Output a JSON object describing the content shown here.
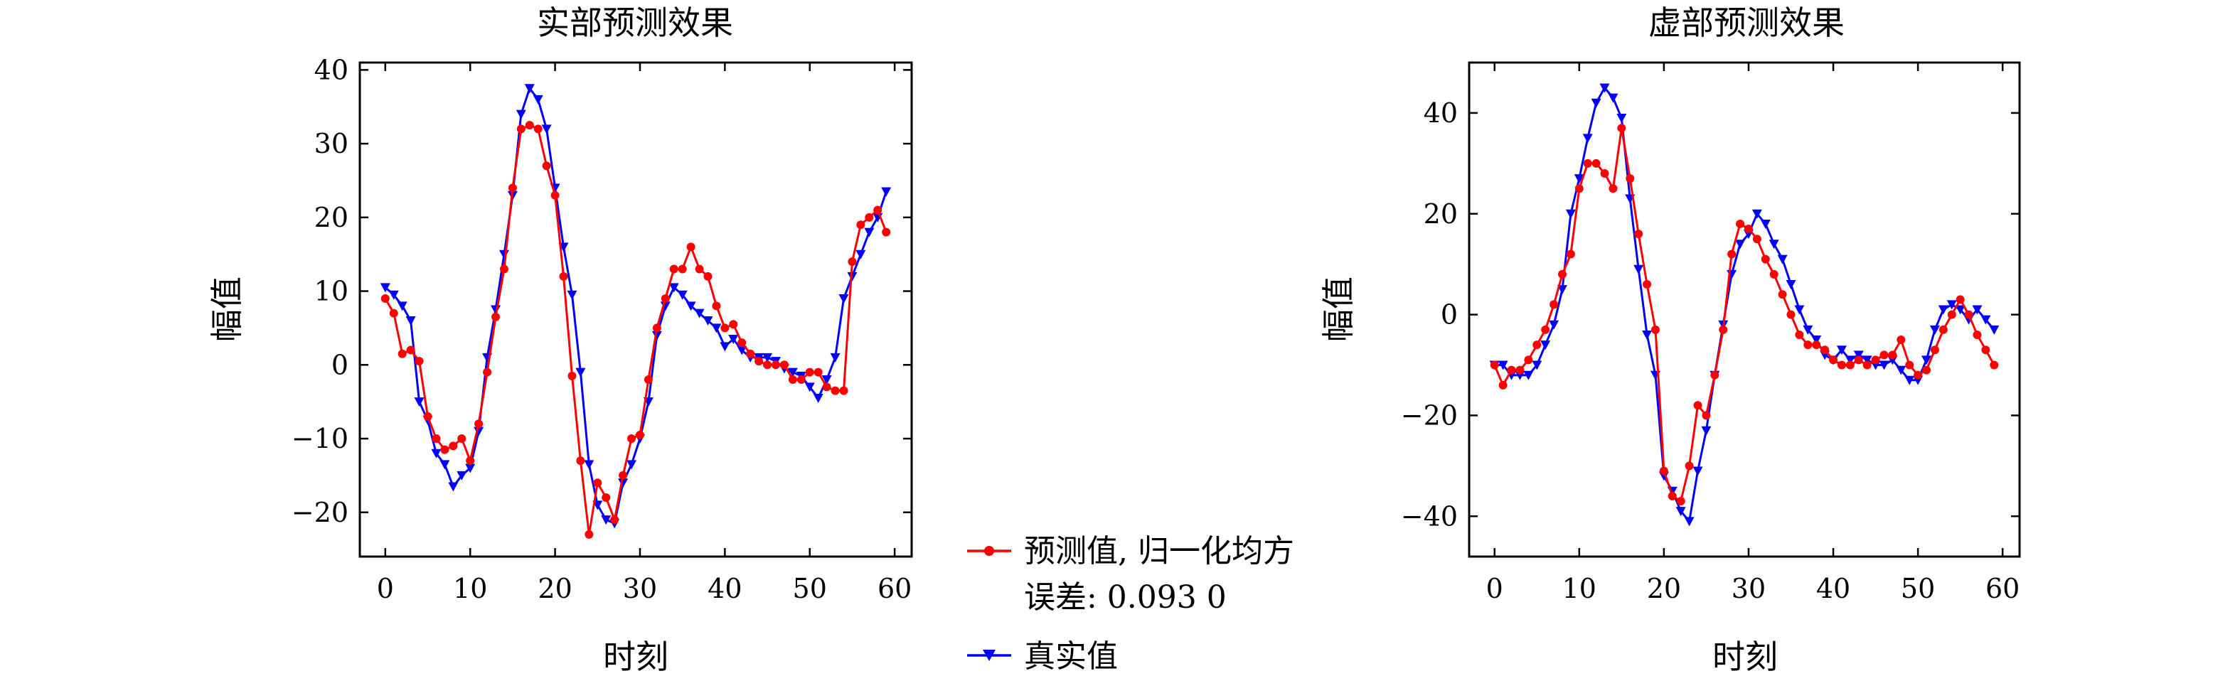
{
  "chart_data": [
    {
      "type": "line",
      "title": "实部预测效果",
      "xlabel": "时刻",
      "ylabel": "幅值",
      "xlim": [
        -3,
        62
      ],
      "ylim": [
        -26,
        41
      ],
      "xticks": [
        0,
        10,
        20,
        30,
        40,
        50,
        60
      ],
      "yticks": [
        -20,
        -10,
        0,
        10,
        20,
        30,
        40
      ],
      "x": [
        0,
        1,
        2,
        3,
        4,
        5,
        6,
        7,
        8,
        9,
        10,
        11,
        12,
        13,
        14,
        15,
        16,
        17,
        18,
        19,
        20,
        21,
        22,
        23,
        24,
        25,
        26,
        27,
        28,
        29,
        30,
        31,
        32,
        33,
        34,
        35,
        36,
        37,
        38,
        39,
        40,
        41,
        42,
        43,
        44,
        45,
        46,
        47,
        48,
        49,
        50,
        51,
        52,
        53,
        54,
        55,
        56,
        57,
        58,
        59
      ],
      "series": [
        {
          "name": "预测值, 归一化均方误差: 0.093 0",
          "color": "#ff0000",
          "marker": "circle",
          "values": [
            9,
            7,
            1.5,
            2,
            0.5,
            -7,
            -10,
            -11.5,
            -11,
            -10,
            -13,
            -8,
            -1,
            6.5,
            13,
            24,
            32,
            32.5,
            32,
            27,
            23,
            12,
            -1.5,
            -13,
            -23,
            -16,
            -18,
            -21,
            -15,
            -10,
            -9.5,
            -2,
            5,
            9,
            13,
            13,
            16,
            13,
            12,
            8,
            5,
            5.5,
            3,
            1.5,
            0.5,
            0,
            0,
            0,
            -2,
            -2,
            -1,
            -1,
            -3,
            -3.5,
            -3.5,
            14,
            19,
            20,
            21,
            18
          ]
        },
        {
          "name": "真实值",
          "color": "#0000ff",
          "marker": "triangle-down",
          "values": [
            10.5,
            9.5,
            8,
            6,
            -5,
            -7.5,
            -12,
            -13.5,
            -16.5,
            -15,
            -14,
            -9,
            1,
            7.5,
            15,
            23,
            34,
            37.5,
            36,
            32,
            24,
            16,
            9.5,
            -1,
            -13.5,
            -19,
            -21,
            -21.5,
            -16,
            -13.5,
            -10,
            -5,
            4,
            8,
            10.5,
            9.5,
            8,
            7,
            6,
            5,
            2.5,
            3.5,
            2,
            1,
            1,
            1,
            0.5,
            -0.5,
            -1,
            -1.5,
            -3,
            -4.5,
            -2,
            1,
            9,
            12,
            15,
            18,
            20,
            23.5
          ]
        }
      ]
    },
    {
      "type": "line",
      "title": "虚部预测效果",
      "xlabel": "时刻",
      "ylabel": "幅值",
      "xlim": [
        -3,
        62
      ],
      "ylim": [
        -48,
        50
      ],
      "xticks": [
        0,
        10,
        20,
        30,
        40,
        50,
        60
      ],
      "yticks": [
        -40,
        -20,
        0,
        20,
        40
      ],
      "x": [
        0,
        1,
        2,
        3,
        4,
        5,
        6,
        7,
        8,
        9,
        10,
        11,
        12,
        13,
        14,
        15,
        16,
        17,
        18,
        19,
        20,
        21,
        22,
        23,
        24,
        25,
        26,
        27,
        28,
        29,
        30,
        31,
        32,
        33,
        34,
        35,
        36,
        37,
        38,
        39,
        40,
        41,
        42,
        43,
        44,
        45,
        46,
        47,
        48,
        49,
        50,
        51,
        52,
        53,
        54,
        55,
        56,
        57,
        58,
        59
      ],
      "series": [
        {
          "name": "预测值, 归一化均方误差: 0.093 0",
          "color": "#ff0000",
          "marker": "circle",
          "values": [
            -10,
            -14,
            -11,
            -11,
            -9,
            -6,
            -3,
            2,
            8,
            12,
            25,
            30,
            30,
            28,
            25,
            37,
            27,
            16,
            6,
            -3,
            -31,
            -36,
            -37,
            -30,
            -18,
            -20,
            -12,
            -3,
            12,
            18,
            17,
            15,
            11,
            8,
            4,
            0,
            -4,
            -6,
            -6,
            -7,
            -9,
            -10,
            -10,
            -9,
            -10,
            -9,
            -8,
            -8,
            -5,
            -10,
            -12,
            -11,
            -7,
            -3,
            0,
            3,
            0,
            -4,
            -7,
            -10
          ]
        },
        {
          "name": "真实值",
          "color": "#0000ff",
          "marker": "triangle-down",
          "values": [
            -10,
            -10,
            -12,
            -12,
            -12,
            -10,
            -6,
            -2,
            5,
            20,
            27,
            35,
            42,
            45,
            43,
            39,
            23,
            9,
            -4,
            -12,
            -32,
            -35,
            -39,
            -41,
            -31,
            -23,
            -12,
            -2,
            8,
            14,
            16,
            20,
            18,
            14,
            11,
            6,
            1,
            -3,
            -5,
            -8,
            -9,
            -7,
            -9,
            -8,
            -9,
            -10,
            -10,
            -9,
            -11,
            -13,
            -13,
            -9,
            -3,
            1,
            2,
            1,
            -1,
            1,
            -1,
            -3
          ]
        }
      ]
    }
  ],
  "legend": {
    "items": [
      {
        "line1": "预测值, 归一化均方误差: 0.093 0",
        "text_line1": "预测值, 归一化均方",
        "text_line2": "误差: 0.093 0",
        "color": "#ff0000",
        "marker": "circle"
      },
      {
        "line1": "真实值",
        "text_line1": "真实值",
        "text_line2": "",
        "color": "#0000ff",
        "marker": "triangle-down"
      }
    ]
  }
}
